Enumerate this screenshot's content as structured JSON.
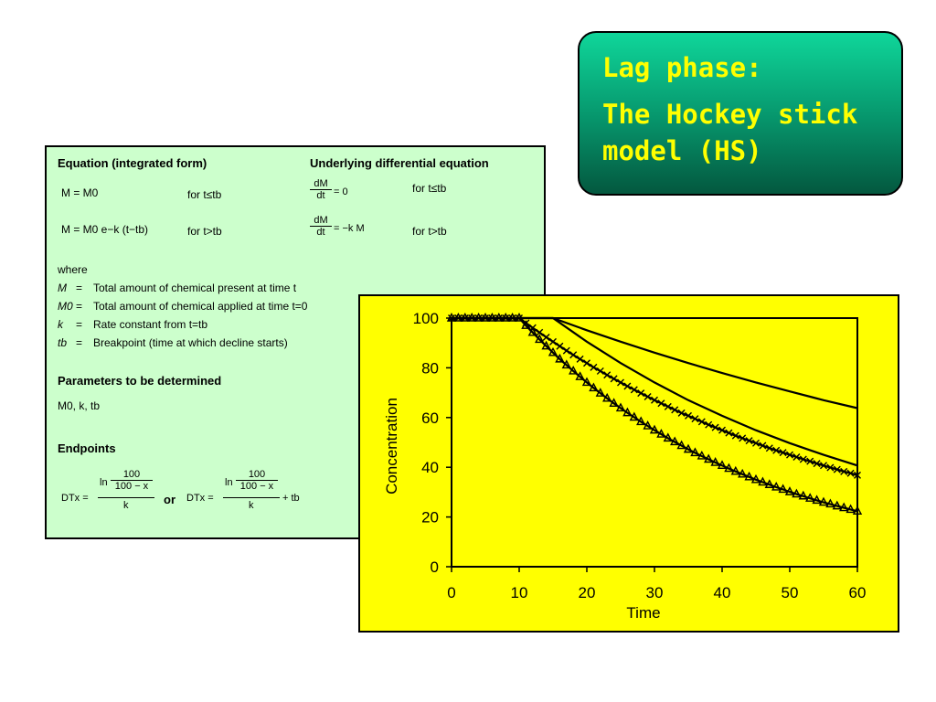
{
  "title": {
    "line1": "Lag phase:",
    "line2": "The Hockey stick model (HS)"
  },
  "equations": {
    "col1_header": "Equation (integrated form)",
    "col2_header": "Underlying differential equation",
    "eq1": "M = M0",
    "cond1": "for t≤tb",
    "deq1_num": "dM",
    "deq1_den": "dt",
    "deq1_rhs": "= 0",
    "dcond1": "for t≤tb",
    "eq2": "M = M0 e−k (t−tb)",
    "cond2": "for t>tb",
    "deq2_num": "dM",
    "deq2_den": "dt",
    "deq2_rhs": "= −k M",
    "dcond2": "for t>tb",
    "where": "where",
    "defs": [
      {
        "sym": "M",
        "eq": "=",
        "text": "Total amount of chemical present at time t"
      },
      {
        "sym": "M0",
        "eq": "=",
        "text": "Total amount of chemical applied at time t=0"
      },
      {
        "sym": "k",
        "eq": "=",
        "text": "Rate constant from t=tb"
      },
      {
        "sym": "tb",
        "eq": "=",
        "text": "Breakpoint (time at which decline starts)"
      }
    ],
    "params_header": "Parameters to be determined",
    "params": "M0, k, tb",
    "endpoints_header": "Endpoints",
    "dt_lhs": "DTx =",
    "ln": "ln",
    "inner_num": "100",
    "inner_den": "100 − x",
    "outer_den": "k",
    "or": "or",
    "dt2_lhs": "DTx =",
    "plus_tb": "+ tb"
  },
  "chart_data": {
    "type": "line",
    "xlabel": "Time",
    "ylabel": "Concentration",
    "xlim": [
      0,
      60
    ],
    "ylim": [
      0,
      100
    ],
    "xticks": [
      "0",
      "10",
      "20",
      "30",
      "40",
      "50",
      "60"
    ],
    "yticks": [
      "0",
      "20",
      "40",
      "60",
      "80",
      "100"
    ],
    "grid": false,
    "series": [
      {
        "marker": "triangle",
        "tb": 10,
        "k": 0.03,
        "x": [
          0,
          1,
          2,
          3,
          4,
          5,
          6,
          7,
          8,
          9,
          10,
          11,
          12,
          13,
          14,
          15,
          16,
          17,
          18,
          19,
          20,
          21,
          22,
          23,
          24,
          25,
          26,
          27,
          28,
          29,
          30,
          31,
          32,
          33,
          34,
          35,
          36,
          37,
          38,
          39,
          40,
          41,
          42,
          43,
          44,
          45,
          46,
          47,
          48,
          49,
          50,
          51,
          52,
          53,
          54,
          55,
          56,
          57,
          58,
          59,
          60
        ],
        "y": [
          100,
          100,
          100,
          100,
          100,
          100,
          100,
          100,
          100,
          100,
          100,
          97.0,
          94.2,
          91.4,
          88.7,
          86.1,
          83.5,
          81.1,
          78.7,
          76.4,
          74.1,
          71.9,
          69.8,
          67.7,
          65.7,
          63.8,
          61.9,
          60.1,
          58.3,
          56.6,
          54.9,
          53.3,
          51.7,
          50.2,
          48.7,
          47.2,
          45.8,
          44.5,
          43.2,
          41.9,
          40.7,
          39.5,
          38.3,
          37.2,
          36.1,
          35.0,
          34.0,
          33.0,
          32.0,
          31.1,
          30.1,
          29.2,
          28.4,
          27.5,
          26.7,
          25.9,
          25.2,
          24.4,
          23.7,
          23.0,
          22.3
        ]
      },
      {
        "marker": "cross",
        "tb": 10,
        "k": 0.02,
        "x": [
          0,
          1,
          2,
          3,
          4,
          5,
          6,
          7,
          8,
          9,
          10,
          11,
          12,
          13,
          14,
          15,
          16,
          17,
          18,
          19,
          20,
          21,
          22,
          23,
          24,
          25,
          26,
          27,
          28,
          29,
          30,
          31,
          32,
          33,
          34,
          35,
          36,
          37,
          38,
          39,
          40,
          41,
          42,
          43,
          44,
          45,
          46,
          47,
          48,
          49,
          50,
          51,
          52,
          53,
          54,
          55,
          56,
          57,
          58,
          59,
          60
        ],
        "y": [
          100,
          100,
          100,
          100,
          100,
          100,
          100,
          100,
          100,
          100,
          100,
          98.0,
          96.1,
          94.2,
          92.3,
          90.5,
          88.7,
          86.9,
          85.2,
          83.5,
          81.9,
          80.2,
          78.7,
          77.1,
          75.6,
          74.1,
          72.6,
          71.2,
          69.8,
          68.4,
          67.0,
          65.7,
          64.4,
          63.1,
          61.8,
          60.7,
          59.5,
          58.3,
          57.1,
          56.0,
          54.9,
          53.8,
          52.7,
          51.7,
          50.7,
          49.7,
          48.7,
          47.7,
          46.8,
          45.9,
          45.0,
          44.1,
          43.2,
          42.4,
          41.5,
          40.7,
          39.9,
          39.1,
          38.3,
          37.6,
          36.8
        ]
      },
      {
        "marker": "none",
        "tb": 15,
        "k": 0.02,
        "x": [
          0,
          15,
          20,
          25,
          30,
          35,
          40,
          45,
          50,
          55,
          60
        ],
        "y": [
          100,
          100,
          90.5,
          81.9,
          74.1,
          67.0,
          60.7,
          54.9,
          49.7,
          45.0,
          40.7
        ]
      },
      {
        "marker": "none",
        "tb": 15,
        "k": 0.01,
        "x": [
          0,
          15,
          20,
          25,
          30,
          35,
          40,
          45,
          50,
          55,
          60
        ],
        "y": [
          100,
          100,
          95.1,
          90.5,
          86.1,
          81.9,
          77.9,
          74.1,
          70.5,
          67.0,
          63.8
        ]
      }
    ]
  }
}
